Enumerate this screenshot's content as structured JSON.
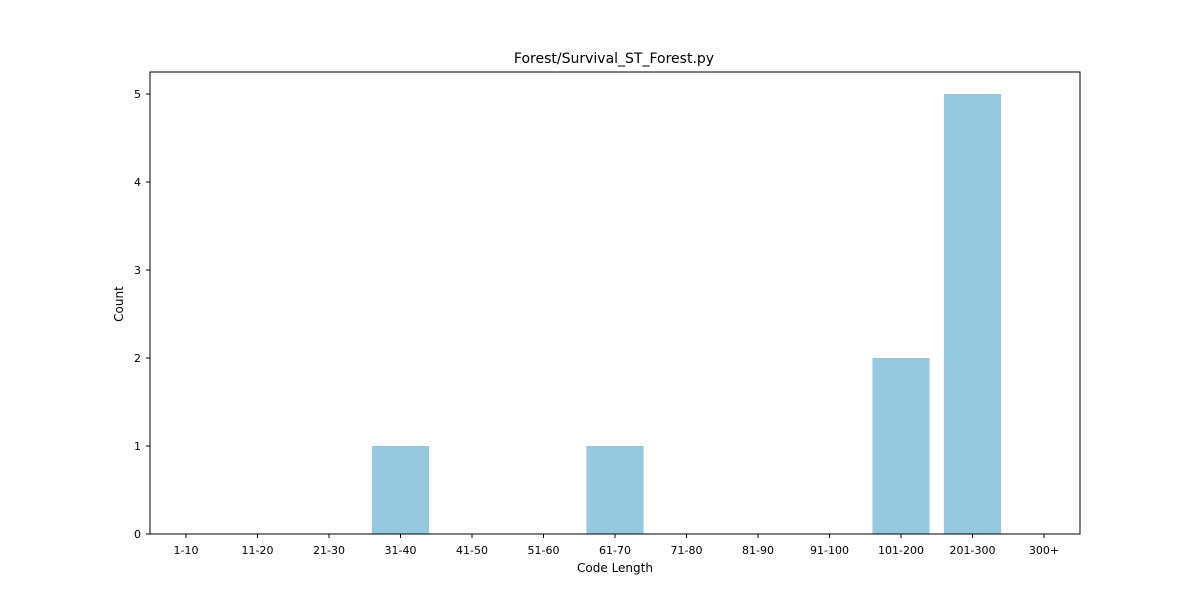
{
  "chart_data": {
    "type": "bar",
    "title": "Forest/Survival_ST_Forest.py",
    "xlabel": "Code Length",
    "ylabel": "Count",
    "categories": [
      "1-10",
      "11-20",
      "21-30",
      "31-40",
      "41-50",
      "51-60",
      "61-70",
      "71-80",
      "81-90",
      "91-100",
      "101-200",
      "201-300",
      "300+"
    ],
    "values": [
      0,
      0,
      0,
      1,
      0,
      0,
      1,
      0,
      0,
      0,
      2,
      5,
      0
    ],
    "ylim": [
      0,
      5.25
    ],
    "yticks": [
      0,
      1,
      2,
      3,
      4,
      5
    ],
    "bar_color": "#96c9df",
    "grid": false,
    "legend": "none"
  }
}
